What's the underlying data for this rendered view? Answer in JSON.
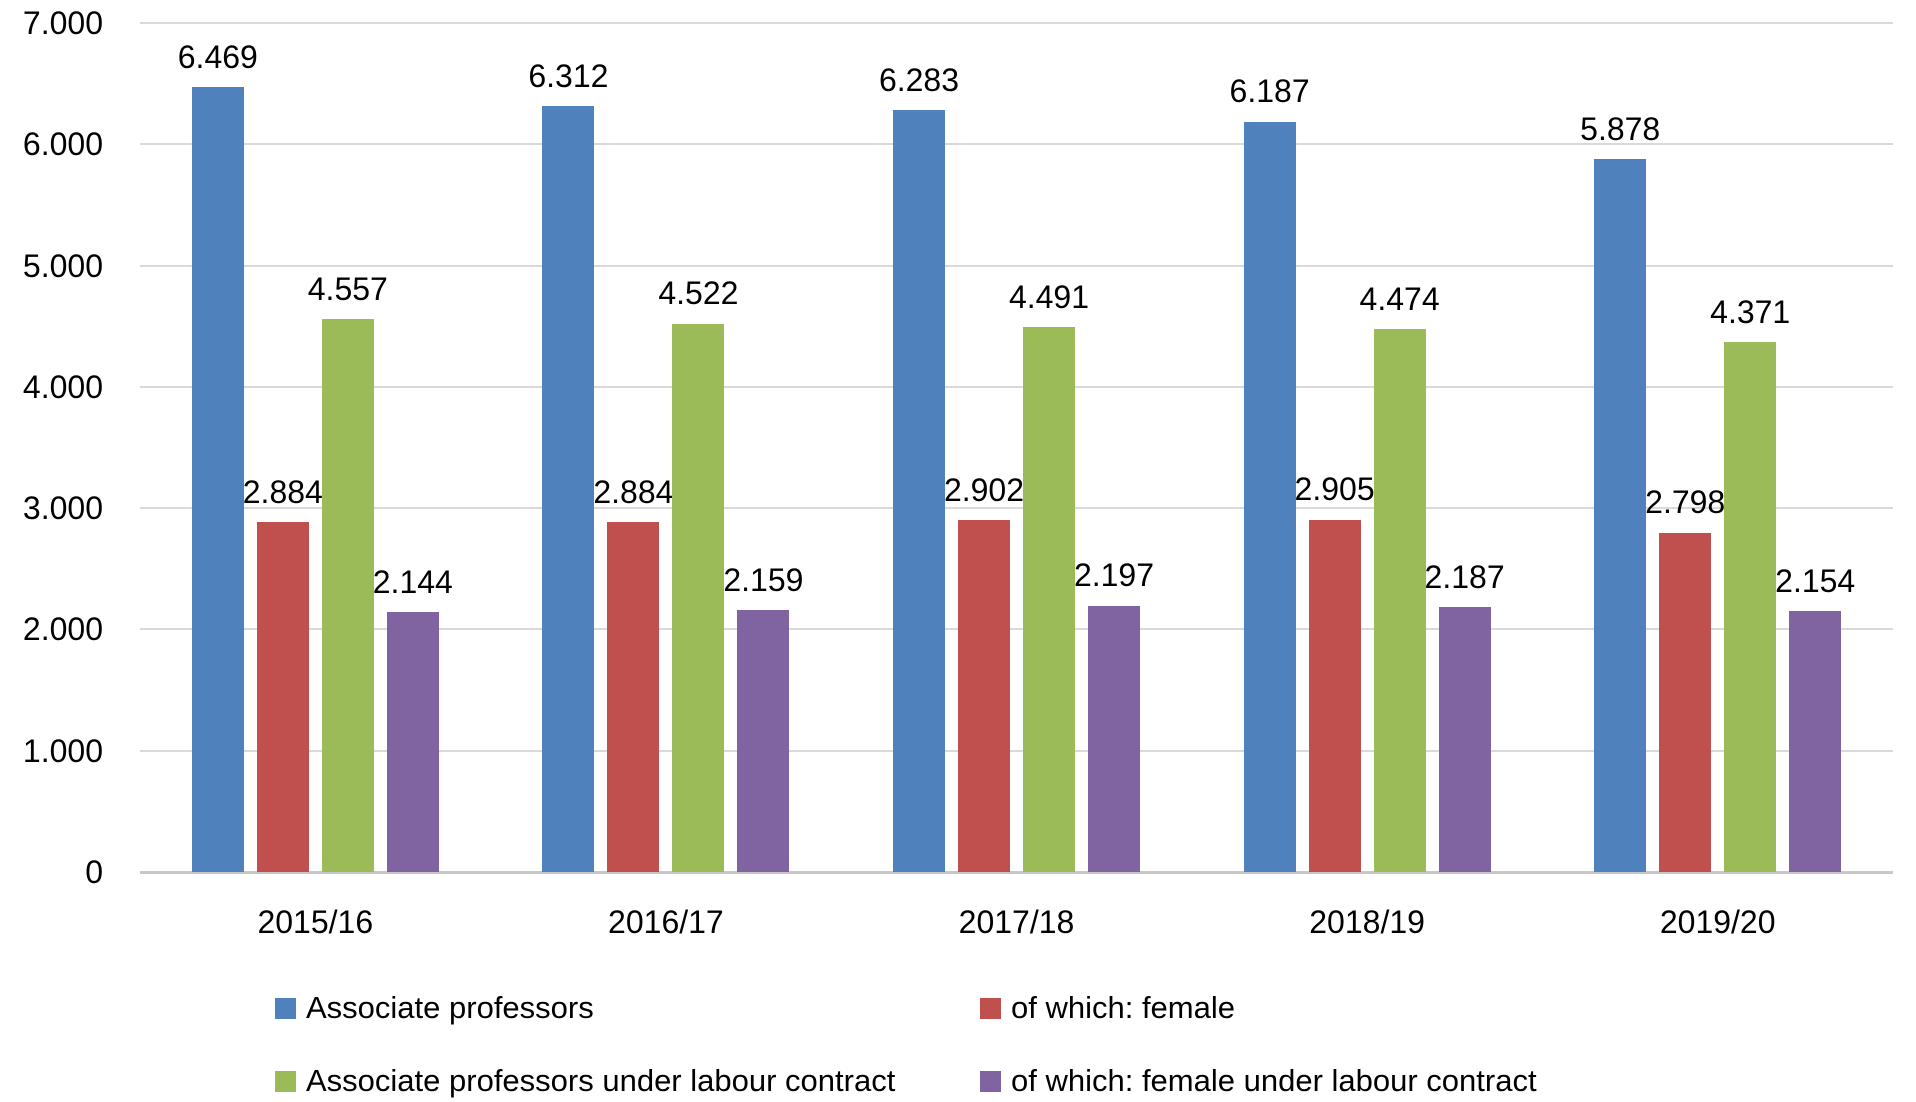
{
  "chart_data": {
    "type": "bar",
    "title": "",
    "categories": [
      "2015/16",
      "2016/17",
      "2017/18",
      "2018/19",
      "2019/20"
    ],
    "series": [
      {
        "name": "Associate professors",
        "color": "#4F81BD",
        "values": [
          6469,
          6312,
          6283,
          6187,
          5878
        ],
        "labels": [
          "6.469",
          "6.312",
          "6.283",
          "6.187",
          "5.878"
        ]
      },
      {
        "name": "of which: female",
        "color": "#C0504D",
        "values": [
          2884,
          2884,
          2902,
          2905,
          2798
        ],
        "labels": [
          "2.884",
          "2.884",
          "2.902",
          "2.905",
          "2.798"
        ]
      },
      {
        "name": "Associate professors under labour contract",
        "color": "#9BBB59",
        "values": [
          4557,
          4522,
          4491,
          4474,
          4371
        ],
        "labels": [
          "4.557",
          "4.522",
          "4.491",
          "4.474",
          "4.371"
        ]
      },
      {
        "name": "of which: female under labour contract",
        "color": "#8064A2",
        "values": [
          2144,
          2159,
          2197,
          2187,
          2154
        ],
        "labels": [
          "2.144",
          "2.159",
          "2.197",
          "2.187",
          "2.154"
        ]
      }
    ],
    "y_axis": {
      "min": 0,
      "max": 7000,
      "tick_interval": 1000,
      "ticks": [
        {
          "value": 7000,
          "label": "7.000"
        },
        {
          "value": 6000,
          "label": "6.000"
        },
        {
          "value": 5000,
          "label": "5.000"
        },
        {
          "value": 4000,
          "label": "4.000"
        },
        {
          "value": 3000,
          "label": "3.000"
        },
        {
          "value": 2000,
          "label": "2.000"
        },
        {
          "value": 1000,
          "label": "1.000"
        },
        {
          "value": 0,
          "label": "0"
        }
      ]
    },
    "grid": true,
    "legend_position": "bottom",
    "colors": {
      "gridline": "#D9D9D9",
      "baseline": "#C8C8C8",
      "text": "#000000",
      "background": "#FFFFFF"
    }
  }
}
